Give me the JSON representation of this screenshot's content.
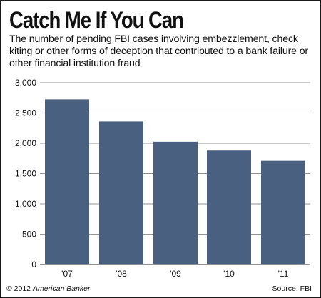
{
  "title": "Catch Me If You Can",
  "subtitle": "The number of pending FBI cases involving embezzlement, check kiting or other forms of deception that contributed to a bank failure or other financial institution fraud",
  "footer": {
    "copyright_prefix": "© 2012",
    "copyright_org": "American Banker",
    "source": "Source: FBI"
  },
  "colors": {
    "bar": "#4a6080",
    "grid": "#6f6f6f",
    "text": "#111111"
  },
  "chart_data": {
    "type": "bar",
    "categories": [
      "'07",
      "'08",
      "'09",
      "'10",
      "'11"
    ],
    "values": [
      2725,
      2360,
      2025,
      1880,
      1710
    ],
    "ylim": [
      0,
      3000
    ],
    "yticks": [
      0,
      500,
      1000,
      1500,
      2000,
      2500,
      3000
    ],
    "ytick_labels": [
      "0",
      "500",
      "1,000",
      "1,500",
      "2,000",
      "2,500",
      "3,000"
    ],
    "grid": true,
    "legend": "none"
  }
}
